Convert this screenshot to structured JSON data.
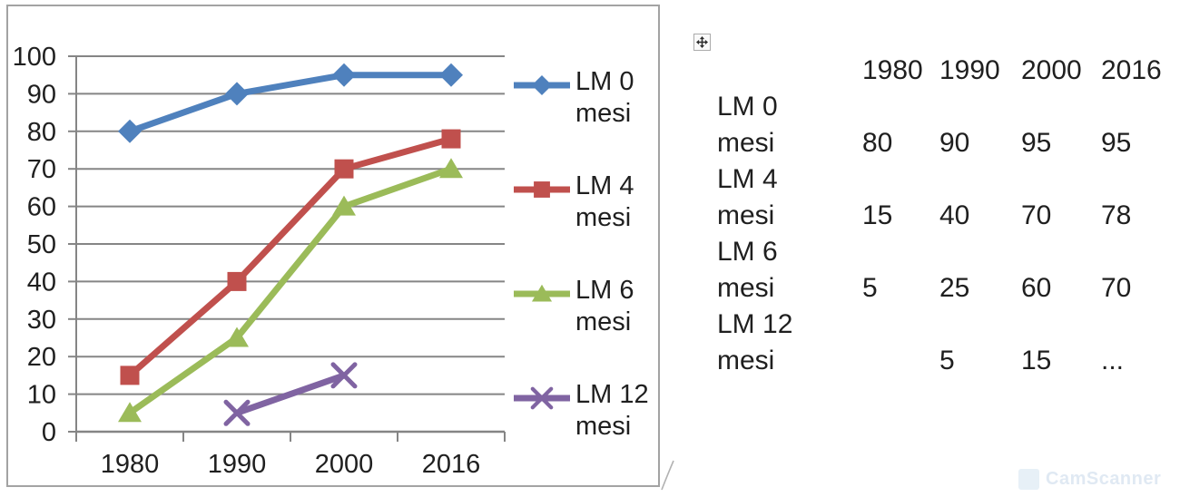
{
  "chart_data": {
    "type": "line",
    "title": "",
    "xlabel": "",
    "ylabel": "",
    "categories": [
      "1980",
      "1990",
      "2000",
      "2016"
    ],
    "series": [
      {
        "name": "LM 0 mesi",
        "values": [
          80,
          90,
          95,
          95
        ],
        "color": "#4F81BD",
        "marker": "diamond"
      },
      {
        "name": "LM 4 mesi",
        "values": [
          15,
          40,
          70,
          78
        ],
        "color": "#C0504D",
        "marker": "square"
      },
      {
        "name": "LM 6 mesi",
        "values": [
          5,
          25,
          60,
          70
        ],
        "color": "#9BBB59",
        "marker": "triangle"
      },
      {
        "name": "LM 12 mesi",
        "values": [
          null,
          5,
          15,
          null
        ],
        "color": "#8064A2",
        "marker": "x"
      }
    ],
    "ylim": [
      0,
      100
    ],
    "yticks": [
      0,
      10,
      20,
      30,
      40,
      50,
      60,
      70,
      80,
      90,
      100
    ],
    "grid": true,
    "legend_position": "right",
    "grid_color": "#858585",
    "axis_color": "#858585",
    "text_color": "#1f1f1f",
    "frame_border_color": "#a3a3a3"
  },
  "table": {
    "columns": [
      "",
      "1980",
      "1990",
      "2000",
      "2016"
    ],
    "rows": [
      {
        "label": "LM 0 mesi",
        "values": [
          "80",
          "90",
          "95",
          "95"
        ]
      },
      {
        "label": "LM 4 mesi",
        "values": [
          "15",
          "40",
          "70",
          "78"
        ]
      },
      {
        "label": "LM 6 mesi",
        "values": [
          "5",
          "25",
          "60",
          "70"
        ]
      },
      {
        "label": "LM 12 mesi",
        "values": [
          "",
          "5",
          "15",
          "..."
        ]
      }
    ]
  },
  "icons": {
    "table_move_handle": "four-direction-move-arrows",
    "watermark_logo": "camscanner-logo"
  },
  "watermark": {
    "text": "CamScanner"
  }
}
